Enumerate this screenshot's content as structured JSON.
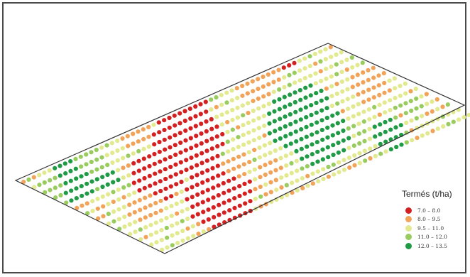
{
  "legend": {
    "title": "Termés (t/ha)",
    "classes": [
      {
        "label": "7.0 –  8.0",
        "color": "#d42020"
      },
      {
        "label": "8.0 –  9.5",
        "color": "#f2a35a"
      },
      {
        "label": "9.5 – 11.0",
        "color": "#e2e98e"
      },
      {
        "label": "11.0 – 12.0",
        "color": "#99cc5e"
      },
      {
        "label": "12.0 – 13.5",
        "color": "#1f9a45"
      }
    ]
  },
  "field": {
    "outline_color": "#333333",
    "point_color_classes": "Termés (t/ha)"
  }
}
